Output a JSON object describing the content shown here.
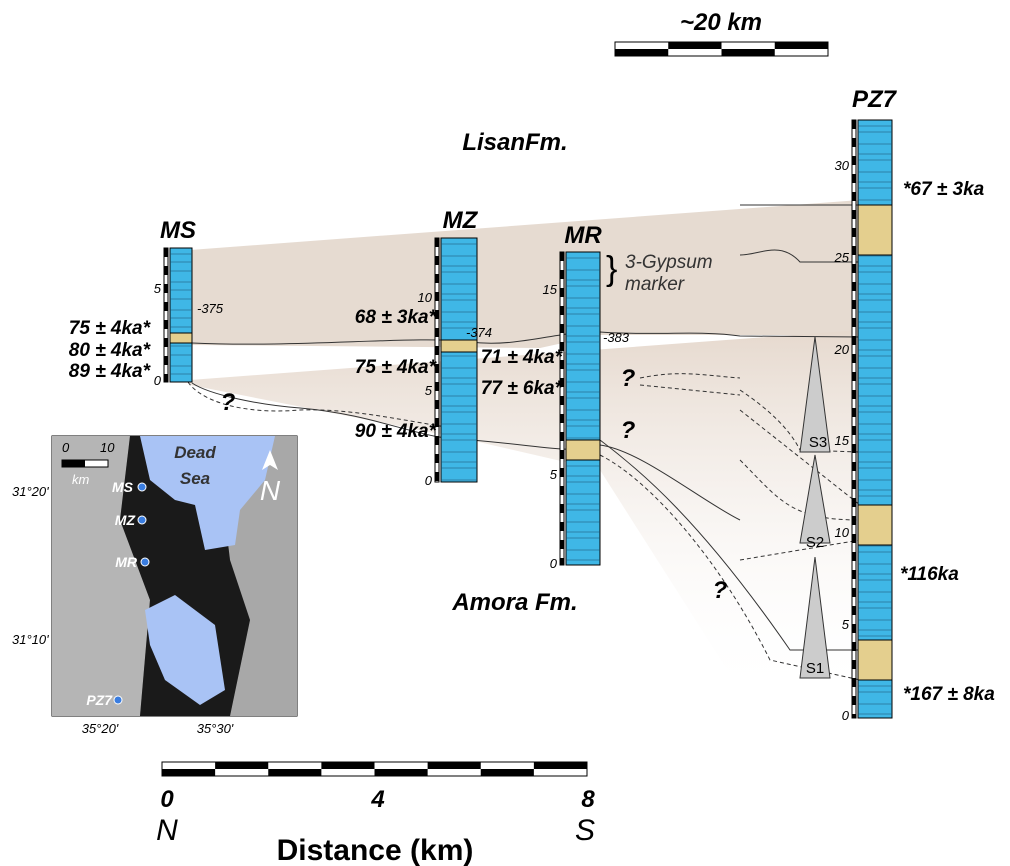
{
  "scale_bar_top": "~20 km",
  "formations": {
    "lisan": "LisanFm.",
    "amora": "Amora Fm."
  },
  "columns": [
    {
      "name": "MS",
      "depth_ticks": [
        "5",
        "0"
      ],
      "elevation": "-375",
      "ages": [
        "75 ± 4ka*",
        "80 ± 4ka*",
        "89 ± 4ka*"
      ]
    },
    {
      "name": "MZ",
      "depth_ticks": [
        "10",
        "5",
        "0"
      ],
      "elevation": "-374",
      "ages": [
        "68 ± 3ka*",
        "75 ± 4ka*",
        "90 ± 4ka*"
      ]
    },
    {
      "name": "MR",
      "depth_ticks": [
        "15",
        "5",
        "0"
      ],
      "elevation": "-383",
      "ages": [
        "71 ± 4ka*",
        "77 ± 6ka*"
      ],
      "marker": [
        "3-Gypsum",
        "marker"
      ]
    },
    {
      "name": "PZ7",
      "depth_ticks": [
        "30",
        "25",
        "20",
        "15",
        "10",
        "5",
        "0"
      ],
      "ages": [
        "*67 ± 3ka",
        "*116ka",
        "*167 ± 8ka"
      ]
    }
  ],
  "question_marks": [
    "?",
    "?",
    "?",
    "?"
  ],
  "sequences": [
    "S1",
    "S2",
    "S3"
  ],
  "inset_map": {
    "scale": [
      "0",
      "10",
      "km"
    ],
    "lake": [
      "Dead",
      "Sea"
    ],
    "sites": [
      "MS",
      "MZ",
      "MR",
      "PZ7"
    ],
    "north": "N",
    "lat": [
      "31°20'",
      "31°10'"
    ],
    "lon": [
      "35°20'",
      "35°30'"
    ]
  },
  "distance_axis": {
    "ticks": [
      "0",
      "4",
      "8"
    ],
    "left": "N",
    "right": "S",
    "title": "Distance (km)"
  }
}
